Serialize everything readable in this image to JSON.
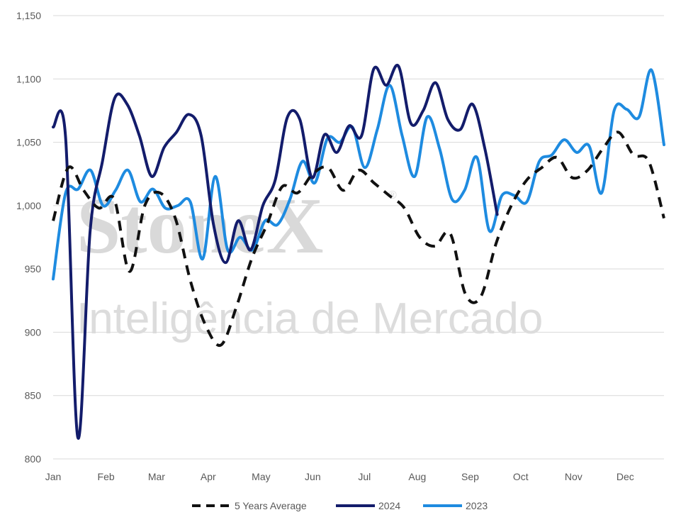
{
  "watermark": {
    "brand": "StoneX",
    "registered": "®",
    "tagline": "Inteligência de Mercado"
  },
  "chart_data": {
    "type": "line",
    "ylim": [
      800,
      1150
    ],
    "yticks": [
      800,
      850,
      900,
      950,
      1000,
      1050,
      1100,
      1150
    ],
    "ytick_labels": [
      "800",
      "850",
      "900",
      "950",
      "1,000",
      "1,050",
      "1,100",
      "1,150"
    ],
    "xlim": [
      0,
      52
    ],
    "months": [
      {
        "label": "Jan",
        "week": 0
      },
      {
        "label": "Feb",
        "week": 4.5
      },
      {
        "label": "Mar",
        "week": 8.8
      },
      {
        "label": "Apr",
        "week": 13.2
      },
      {
        "label": "May",
        "week": 17.7
      },
      {
        "label": "Jun",
        "week": 22.1
      },
      {
        "label": "Jul",
        "week": 26.5
      },
      {
        "label": "Aug",
        "week": 31
      },
      {
        "label": "Sep",
        "week": 35.5
      },
      {
        "label": "Oct",
        "week": 39.8
      },
      {
        "label": "Nov",
        "week": 44.3
      },
      {
        "label": "Dec",
        "week": 48.7
      }
    ],
    "grid": true,
    "legend_position": "bottom",
    "series": [
      {
        "name": "5 Years Average",
        "color": "#111111",
        "dash": true,
        "values": [
          988,
          1030,
          1012,
          998,
          1005,
          948,
          1000,
          1010,
          990,
          940,
          905,
          890,
          920,
          958,
          985,
          1015,
          1010,
          1025,
          1030,
          1012,
          1028,
          1018,
          1008,
          998,
          975,
          968,
          978,
          930,
          928,
          970,
          1000,
          1020,
          1030,
          1038,
          1022,
          1028,
          1045,
          1058,
          1040,
          1035,
          990
        ]
      },
      {
        "name": "2024",
        "color": "#131c6b",
        "dash": false,
        "values": [
          1062,
          1055,
          817,
          980,
          1035,
          1085,
          1080,
          1055,
          1023,
          1046,
          1058,
          1072,
          1055,
          985,
          955,
          988,
          965,
          1000,
          1020,
          1070,
          1068,
          1022,
          1056,
          1042,
          1063,
          1055,
          1108,
          1095,
          1110,
          1065,
          1075,
          1097,
          1068,
          1060,
          1080,
          1045,
          993
        ]
      },
      {
        "name": "2023",
        "color": "#1e8be0",
        "dash": false,
        "values": [
          942,
          1010,
          1013,
          1028,
          1000,
          1012,
          1028,
          1003,
          1013,
          998,
          1000,
          1003,
          958,
          1023,
          965,
          975,
          965,
          988,
          985,
          1005,
          1035,
          1018,
          1053,
          1050,
          1062,
          1030,
          1060,
          1095,
          1055,
          1023,
          1070,
          1045,
          1005,
          1012,
          1038,
          980,
          1008,
          1008,
          1003,
          1035,
          1040,
          1052,
          1042,
          1047,
          1010,
          1075,
          1076,
          1070,
          1107,
          1048
        ]
      }
    ]
  }
}
